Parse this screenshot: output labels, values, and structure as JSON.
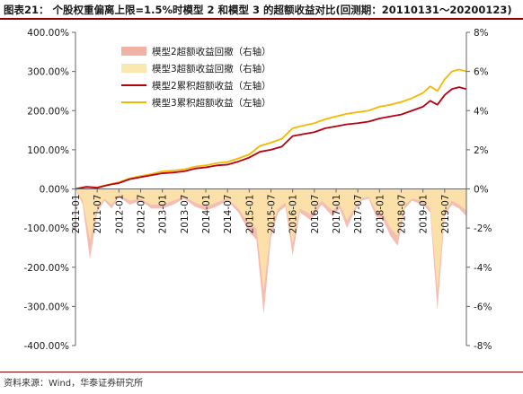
{
  "header": {
    "title": "图表21：  个股权重偏离上限=1.5%时模型 2 和模型 3 的超额收益对比(回测期：20110131～20200123)"
  },
  "footer": {
    "source": "资料来源：Wind，华泰证券研究所"
  },
  "colors": {
    "model2_line": "#b8000e",
    "model3_line": "#f5b800",
    "model2_drawdown": "#f0a89a",
    "model3_drawdown": "#fbe6a8",
    "accent": "#8b0000"
  },
  "chart_data": {
    "type": "line",
    "left_axis": {
      "ylim": [
        -400,
        400
      ],
      "ticks": [
        400,
        300,
        200,
        100,
        0,
        -100,
        -200,
        -300,
        -400
      ],
      "tick_labels": [
        "400.00%",
        "300.00%",
        "200.00%",
        "100.00%",
        "0.00%",
        "-100.00%",
        "-200.00%",
        "-300.00%",
        "-400.00%"
      ]
    },
    "right_axis": {
      "ylim": [
        -8,
        8
      ],
      "ticks": [
        8,
        6,
        4,
        2,
        0,
        -2,
        -4,
        -6,
        -8
      ],
      "tick_labels": [
        "8%",
        "6%",
        "4%",
        "2%",
        "0%",
        "-2%",
        "-4%",
        "-6%",
        "-8%"
      ]
    },
    "x_axis": {
      "start": "2011-01",
      "end": "2020-01",
      "tick_labels": [
        "2011-01",
        "2011-07",
        "2012-01",
        "2012-07",
        "2013-01",
        "2013-07",
        "2014-01",
        "2014-07",
        "2015-01",
        "2015-07",
        "2016-01",
        "2016-07",
        "2017-01",
        "2017-07",
        "2018-01",
        "2018-07",
        "2019-01",
        "2019-07"
      ]
    },
    "legend": {
      "placement": "top-left",
      "entries": [
        {
          "label": "模型2超额收益回撤（右轴）",
          "kind": "area",
          "color": "#f0a89a"
        },
        {
          "label": "模型3超额收益回撤（右轴）",
          "kind": "area",
          "color": "#fbe6a8"
        },
        {
          "label": "模型2累积超额收益（左轴）",
          "kind": "line",
          "color": "#b8000e"
        },
        {
          "label": "模型3累积超额收益（左轴）",
          "kind": "line",
          "color": "#f5b800"
        }
      ]
    },
    "series": [
      {
        "name": "模型2累积超额收益（左轴）",
        "axis": "left",
        "points": [
          [
            "2011-01",
            0
          ],
          [
            "2011-04",
            5
          ],
          [
            "2011-07",
            3
          ],
          [
            "2011-10",
            10
          ],
          [
            "2012-01",
            15
          ],
          [
            "2012-04",
            25
          ],
          [
            "2012-07",
            30
          ],
          [
            "2012-10",
            35
          ],
          [
            "2013-01",
            40
          ],
          [
            "2013-04",
            42
          ],
          [
            "2013-07",
            45
          ],
          [
            "2013-10",
            52
          ],
          [
            "2014-01",
            55
          ],
          [
            "2014-04",
            60
          ],
          [
            "2014-07",
            62
          ],
          [
            "2014-10",
            70
          ],
          [
            "2015-01",
            80
          ],
          [
            "2015-04",
            95
          ],
          [
            "2015-07",
            100
          ],
          [
            "2015-10",
            108
          ],
          [
            "2016-01",
            135
          ],
          [
            "2016-04",
            140
          ],
          [
            "2016-07",
            145
          ],
          [
            "2016-10",
            155
          ],
          [
            "2017-01",
            160
          ],
          [
            "2017-04",
            165
          ],
          [
            "2017-07",
            168
          ],
          [
            "2017-10",
            172
          ],
          [
            "2018-01",
            180
          ],
          [
            "2018-04",
            185
          ],
          [
            "2018-07",
            190
          ],
          [
            "2018-10",
            200
          ],
          [
            "2019-01",
            210
          ],
          [
            "2019-03",
            225
          ],
          [
            "2019-05",
            215
          ],
          [
            "2019-07",
            240
          ],
          [
            "2019-09",
            255
          ],
          [
            "2019-11",
            260
          ],
          [
            "2020-01",
            255
          ]
        ]
      },
      {
        "name": "模型3累积超额收益（左轴）",
        "axis": "left",
        "points": [
          [
            "2011-01",
            0
          ],
          [
            "2011-04",
            6
          ],
          [
            "2011-07",
            4
          ],
          [
            "2011-10",
            11
          ],
          [
            "2012-01",
            17
          ],
          [
            "2012-04",
            27
          ],
          [
            "2012-07",
            33
          ],
          [
            "2012-10",
            38
          ],
          [
            "2013-01",
            45
          ],
          [
            "2013-04",
            47
          ],
          [
            "2013-07",
            50
          ],
          [
            "2013-10",
            57
          ],
          [
            "2014-01",
            60
          ],
          [
            "2014-04",
            66
          ],
          [
            "2014-07",
            69
          ],
          [
            "2014-10",
            78
          ],
          [
            "2015-01",
            88
          ],
          [
            "2015-04",
            110
          ],
          [
            "2015-07",
            118
          ],
          [
            "2015-10",
            128
          ],
          [
            "2016-01",
            155
          ],
          [
            "2016-04",
            162
          ],
          [
            "2016-07",
            168
          ],
          [
            "2016-10",
            178
          ],
          [
            "2017-01",
            185
          ],
          [
            "2017-04",
            192
          ],
          [
            "2017-07",
            196
          ],
          [
            "2017-10",
            200
          ],
          [
            "2018-01",
            210
          ],
          [
            "2018-04",
            215
          ],
          [
            "2018-07",
            222
          ],
          [
            "2018-10",
            232
          ],
          [
            "2019-01",
            245
          ],
          [
            "2019-03",
            262
          ],
          [
            "2019-05",
            250
          ],
          [
            "2019-07",
            280
          ],
          [
            "2019-09",
            300
          ],
          [
            "2019-11",
            305
          ],
          [
            "2020-01",
            300
          ]
        ]
      },
      {
        "name": "模型2超额收益回撤（右轴）",
        "axis": "right",
        "type": "area",
        "points": [
          [
            "2011-01",
            0
          ],
          [
            "2011-03",
            -0.8
          ],
          [
            "2011-05",
            -3.6
          ],
          [
            "2011-07",
            -1.2
          ],
          [
            "2011-09",
            -0.6
          ],
          [
            "2011-11",
            -1.0
          ],
          [
            "2012-01",
            -0.4
          ],
          [
            "2012-04",
            -0.8
          ],
          [
            "2012-07",
            -0.6
          ],
          [
            "2012-10",
            -1.0
          ],
          [
            "2013-01",
            -1.0
          ],
          [
            "2013-04",
            -0.8
          ],
          [
            "2013-07",
            -0.5
          ],
          [
            "2013-10",
            -0.9
          ],
          [
            "2014-01",
            -1.1
          ],
          [
            "2014-04",
            -0.9
          ],
          [
            "2014-07",
            -0.6
          ],
          [
            "2014-10",
            -1.2
          ],
          [
            "2015-01",
            -2.2
          ],
          [
            "2015-03",
            -2.6
          ],
          [
            "2015-05",
            -6.4
          ],
          [
            "2015-07",
            -2.5
          ],
          [
            "2015-09",
            -1.2
          ],
          [
            "2015-11",
            -0.9
          ],
          [
            "2016-01",
            -3.4
          ],
          [
            "2016-03",
            -1.2
          ],
          [
            "2016-06",
            -1.6
          ],
          [
            "2016-09",
            -0.8
          ],
          [
            "2016-12",
            -1.4
          ],
          [
            "2017-02",
            -1.0
          ],
          [
            "2017-04",
            -2.0
          ],
          [
            "2017-06",
            -1.2
          ],
          [
            "2017-08",
            -0.6
          ],
          [
            "2017-10",
            -0.5
          ],
          [
            "2017-12",
            -1.4
          ],
          [
            "2018-02",
            -1.6
          ],
          [
            "2018-04",
            -2.4
          ],
          [
            "2018-06",
            -2.9
          ],
          [
            "2018-08",
            -1.0
          ],
          [
            "2018-10",
            -0.6
          ],
          [
            "2019-01",
            -0.8
          ],
          [
            "2019-03",
            -1.2
          ],
          [
            "2019-05",
            -6.2
          ],
          [
            "2019-07",
            -1.4
          ],
          [
            "2019-09",
            -0.8
          ],
          [
            "2019-11",
            -1.0
          ],
          [
            "2020-01",
            -1.4
          ]
        ]
      },
      {
        "name": "模型3超额收益回撤（右轴）",
        "axis": "right",
        "type": "area",
        "points": [
          [
            "2011-01",
            0
          ],
          [
            "2011-03",
            -0.6
          ],
          [
            "2011-05",
            -2.6
          ],
          [
            "2011-07",
            -1.0
          ],
          [
            "2011-09",
            -0.5
          ],
          [
            "2011-11",
            -0.8
          ],
          [
            "2012-01",
            -0.3
          ],
          [
            "2012-04",
            -0.6
          ],
          [
            "2012-07",
            -0.5
          ],
          [
            "2012-10",
            -0.8
          ],
          [
            "2013-01",
            -0.8
          ],
          [
            "2013-04",
            -0.6
          ],
          [
            "2013-07",
            -0.4
          ],
          [
            "2013-10",
            -0.7
          ],
          [
            "2014-01",
            -0.9
          ],
          [
            "2014-04",
            -0.7
          ],
          [
            "2014-07",
            -0.5
          ],
          [
            "2014-10",
            -1.0
          ],
          [
            "2015-01",
            -1.8
          ],
          [
            "2015-03",
            -2.0
          ],
          [
            "2015-05",
            -5.2
          ],
          [
            "2015-07",
            -2.0
          ],
          [
            "2015-09",
            -1.0
          ],
          [
            "2015-11",
            -0.7
          ],
          [
            "2016-01",
            -2.8
          ],
          [
            "2016-03",
            -1.0
          ],
          [
            "2016-06",
            -1.3
          ],
          [
            "2016-09",
            -0.6
          ],
          [
            "2016-12",
            -1.1
          ],
          [
            "2017-02",
            -0.8
          ],
          [
            "2017-04",
            -1.6
          ],
          [
            "2017-06",
            -1.0
          ],
          [
            "2017-08",
            -0.5
          ],
          [
            "2017-10",
            -0.4
          ],
          [
            "2017-12",
            -1.1
          ],
          [
            "2018-02",
            -1.3
          ],
          [
            "2018-04",
            -2.0
          ],
          [
            "2018-06",
            -2.4
          ],
          [
            "2018-08",
            -0.8
          ],
          [
            "2018-10",
            -0.5
          ],
          [
            "2019-01",
            -0.6
          ],
          [
            "2019-03",
            -1.0
          ],
          [
            "2019-05",
            -5.2
          ],
          [
            "2019-07",
            -1.2
          ],
          [
            "2019-09",
            -0.6
          ],
          [
            "2019-11",
            -0.8
          ],
          [
            "2020-01",
            -1.1
          ]
        ]
      }
    ]
  }
}
